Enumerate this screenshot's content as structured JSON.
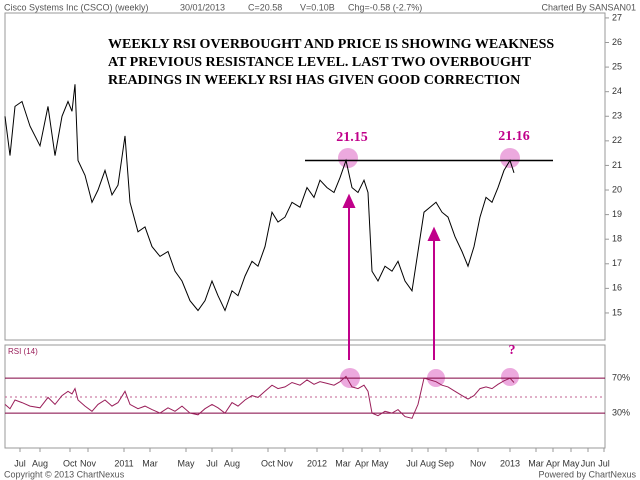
{
  "header": {
    "title": "Cisco Systems Inc (CSCO) (weekly)",
    "date": "30/01/2013",
    "close": "C=20.58",
    "volume": "V=0.10B",
    "change": "Chg=-0.58 (-2.7%)",
    "credit": "Charted By SANSAN01"
  },
  "footer": {
    "copyright": "Copyright © 2013 ChartNexus",
    "powered": "Powered by ChartNexus"
  },
  "chart_data": [
    {
      "type": "line",
      "color": "#000000",
      "annotations": [
        "WEEKLY RSI OVERBOUGHT AND PRICE IS SHOWING WEAKNESS",
        "AT PREVIOUS RESISTANCE LEVEL. LAST TWO OVERBOUGHT",
        "READINGS IN WEEKLY RSI HAS GIVEN GOOD CORRECTION",
        "21.15",
        "21.16"
      ],
      "hline": 21.2,
      "x": [
        0,
        1.25,
        2.5,
        4.25,
        6.25,
        8.75,
        10.75,
        12.5,
        14.25,
        15.75,
        16.75,
        17.5,
        18.25,
        20,
        21.75,
        23.25,
        25,
        26.75,
        28.25,
        30,
        31.25,
        33.25,
        35,
        36.75,
        38.75,
        40.75,
        42.5,
        44.25,
        46.25,
        48.25,
        50,
        51.75,
        53.25,
        55,
        56.75,
        58.25,
        60,
        61.75,
        63.25,
        65,
        66.75,
        68.25,
        70,
        71.75,
        73.75,
        75.5,
        77.25,
        78.75,
        80.5,
        82.25,
        83.75,
        85.25,
        86.75,
        88.25,
        89.75,
        90.75,
        91.75,
        93.25,
        95,
        96.75,
        98.25,
        100,
        101.75,
        103.25,
        104.75,
        106.25,
        107.75,
        109.25,
        110.75,
        112.5,
        114.25,
        115.75,
        117.25,
        118.75,
        120.25,
        121.75,
        123.25,
        124.75,
        126.25,
        127.25
      ],
      "values": [
        23.0,
        21.4,
        23.4,
        23.6,
        22.6,
        21.8,
        23.4,
        21.4,
        23.0,
        23.6,
        23.2,
        24.3,
        21.2,
        20.6,
        19.5,
        20.0,
        20.8,
        19.8,
        20.2,
        22.2,
        19.5,
        18.3,
        18.5,
        17.7,
        17.3,
        17.5,
        16.7,
        16.3,
        15.5,
        15.1,
        15.5,
        16.3,
        15.7,
        15.1,
        15.9,
        15.7,
        16.5,
        17.1,
        16.9,
        17.7,
        19.1,
        18.7,
        18.9,
        19.5,
        19.3,
        20.1,
        19.7,
        20.4,
        20.1,
        19.9,
        20.5,
        21.2,
        20.1,
        19.9,
        20.4,
        19.9,
        16.7,
        16.3,
        16.9,
        16.7,
        17.1,
        16.3,
        15.9,
        17.5,
        19.1,
        19.3,
        19.5,
        19.1,
        18.9,
        18.1,
        17.5,
        16.9,
        17.7,
        18.9,
        19.7,
        19.5,
        20.1,
        20.8,
        21.2,
        20.7
      ],
      "xlim": [
        0,
        150
      ],
      "ylim": [
        13.9,
        27.2
      ],
      "yticks": [
        15,
        16,
        17,
        18,
        19,
        20,
        21,
        22,
        23,
        24,
        25,
        26,
        27
      ]
    },
    {
      "type": "line",
      "title": "RSI (14)",
      "color": "#9a1f5a",
      "annotations": [
        "?"
      ],
      "x": [
        0,
        1.25,
        2.5,
        4.25,
        6.25,
        8.75,
        10.75,
        12.5,
        14.25,
        15.75,
        16.75,
        17.5,
        18.25,
        20,
        21.75,
        23.25,
        25,
        26.75,
        28.25,
        30,
        31.25,
        33.25,
        35,
        36.75,
        38.75,
        40.75,
        42.5,
        44.25,
        46.25,
        48.25,
        50,
        51.75,
        53.25,
        55,
        56.75,
        58.25,
        60,
        61.75,
        63.25,
        65,
        66.75,
        68.25,
        70,
        71.75,
        73.75,
        75.5,
        77.25,
        78.75,
        80.5,
        82.25,
        83.75,
        85.25,
        86.75,
        88.25,
        89.75,
        90.75,
        91.75,
        93.25,
        95,
        96.75,
        98.25,
        100,
        101.75,
        103.25,
        104.75,
        106.25,
        107.75,
        109.25,
        110.75,
        112.5,
        114.25,
        115.75,
        117.25,
        118.75,
        120.25,
        121.75,
        123.25,
        124.75,
        126.25,
        127.25
      ],
      "values": [
        40,
        35,
        45,
        42,
        38,
        36,
        48,
        40,
        50,
        55,
        52,
        58,
        45,
        38,
        32,
        40,
        45,
        38,
        42,
        55,
        40,
        35,
        38,
        34,
        30,
        36,
        32,
        38,
        30,
        28,
        35,
        40,
        36,
        30,
        42,
        38,
        45,
        50,
        48,
        55,
        62,
        58,
        60,
        65,
        62,
        68,
        63,
        66,
        64,
        62,
        66,
        72,
        60,
        58,
        62,
        55,
        30,
        27,
        32,
        30,
        34,
        26,
        24,
        40,
        70,
        68,
        66,
        62,
        60,
        55,
        50,
        46,
        50,
        58,
        60,
        58,
        63,
        67,
        70,
        65
      ],
      "xlim": [
        0,
        150
      ],
      "ylim": [
        -10,
        108
      ],
      "yticks": [
        {
          "value": 70,
          "label": "70%"
        },
        {
          "value": 30,
          "label": "30%"
        }
      ],
      "xticks": [
        {
          "value": 3.75,
          "label": "Jul"
        },
        {
          "value": 8.75,
          "label": "Aug"
        },
        {
          "value": 16.25,
          "label": "Oct"
        },
        {
          "value": 20.75,
          "label": "Nov"
        },
        {
          "value": 29.75,
          "label": "2011"
        },
        {
          "value": 36.25,
          "label": "Mar"
        },
        {
          "value": 45.25,
          "label": "May"
        },
        {
          "value": 51.75,
          "label": "Jul"
        },
        {
          "value": 56.75,
          "label": "Aug"
        },
        {
          "value": 65.75,
          "label": "Oct"
        },
        {
          "value": 70,
          "label": "Nov"
        },
        {
          "value": 78,
          "label": "2012"
        },
        {
          "value": 84.5,
          "label": "Mar"
        },
        {
          "value": 89.25,
          "label": "Apr"
        },
        {
          "value": 93.75,
          "label": "May"
        },
        {
          "value": 101.75,
          "label": "Jul"
        },
        {
          "value": 105.75,
          "label": "Aug"
        },
        {
          "value": 110.25,
          "label": "Sep"
        },
        {
          "value": 118.25,
          "label": "Nov"
        },
        {
          "value": 126.25,
          "label": "2013"
        },
        {
          "value": 132.75,
          "label": "Mar"
        },
        {
          "value": 137,
          "label": "Apr"
        },
        {
          "value": 141.5,
          "label": "May"
        },
        {
          "value": 145.75,
          "label": "Jun"
        },
        {
          "value": 149.75,
          "label": "Jul"
        }
      ]
    }
  ]
}
